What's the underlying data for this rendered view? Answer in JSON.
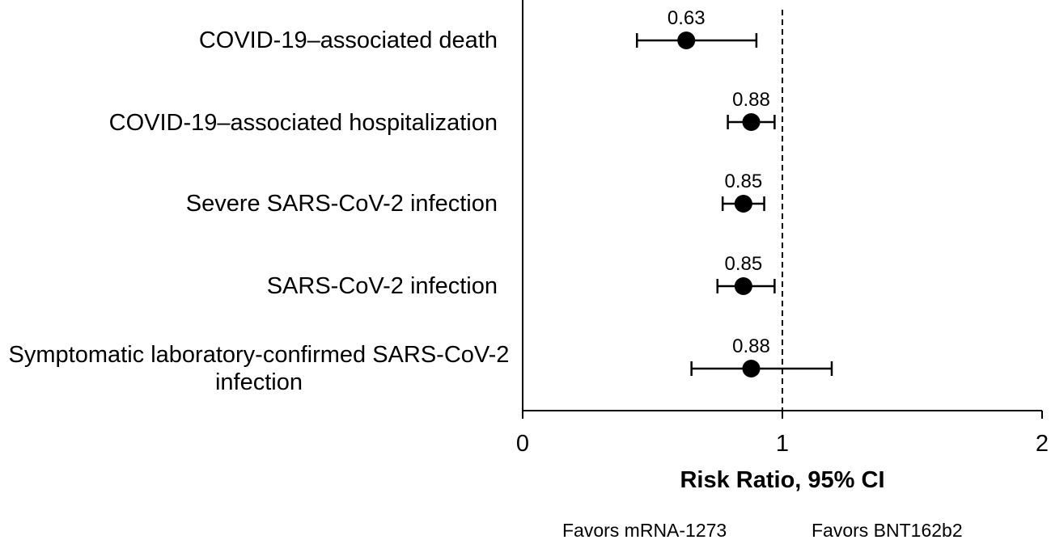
{
  "chart_data": {
    "type": "forest",
    "categories": [
      "COVID-19–associated death",
      "COVID-19–associated hospitalization",
      "Severe SARS-CoV-2 infection",
      "SARS-CoV-2 infection",
      "Symptomatic laboratory-confirmed SARS-CoV-2 infection"
    ],
    "estimates": [
      0.63,
      0.88,
      0.85,
      0.85,
      0.88
    ],
    "estimate_labels": [
      "0.63",
      "0.88",
      "0.85",
      "0.85",
      "0.88"
    ],
    "ci_lower": [
      0.44,
      0.79,
      0.77,
      0.75,
      0.65
    ],
    "ci_upper": [
      0.9,
      0.97,
      0.93,
      0.97,
      1.19
    ],
    "xlabel": "Risk Ratio, 95% CI",
    "xlim": [
      0,
      2
    ],
    "xticks": [
      "0",
      "1",
      "2"
    ],
    "reference_line": 1,
    "favors_left": "Favors mRNA-1273",
    "favors_right": "Favors BNT162b2"
  }
}
